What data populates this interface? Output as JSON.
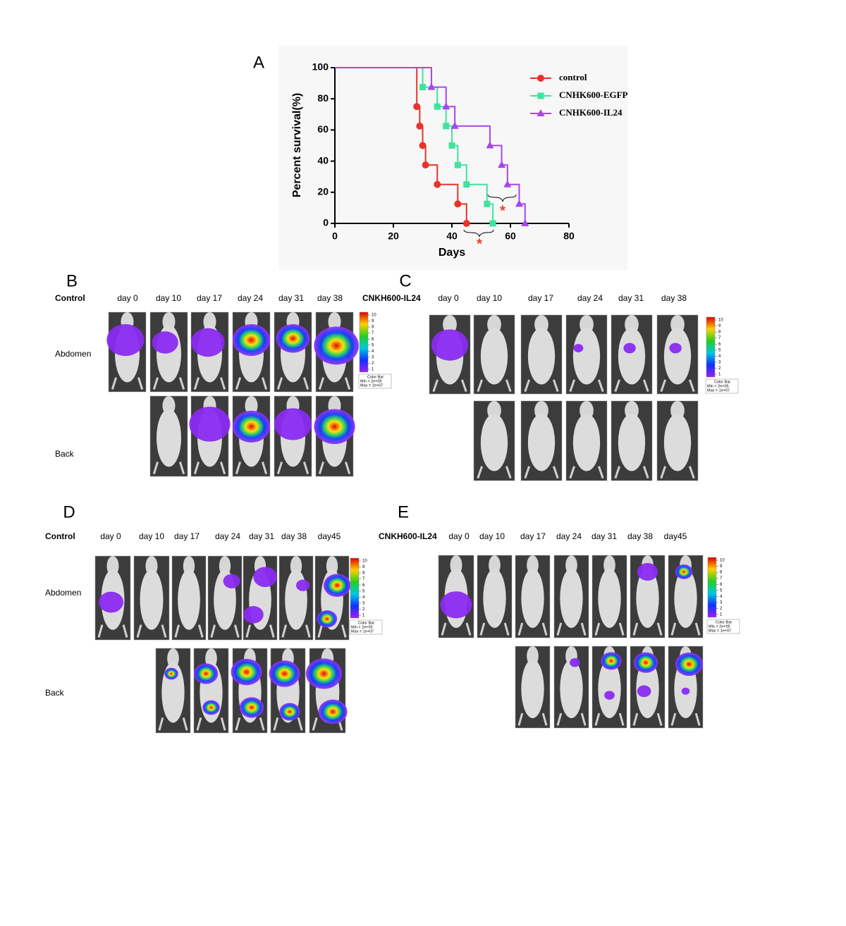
{
  "chart_data": {
    "type": "step",
    "panel_label": "A",
    "x_label": "Days",
    "y_label": "Percent survival(%)",
    "xlim": [
      0,
      80
    ],
    "xticks": [
      0,
      20,
      40,
      60,
      80
    ],
    "ylim": [
      0,
      100
    ],
    "yticks": [
      0,
      20,
      40,
      60,
      80,
      100
    ],
    "legend": "upper right",
    "series": [
      {
        "name": "control",
        "color": "#e8332a",
        "marker": "circle",
        "x": [
          0,
          28,
          29,
          30,
          31,
          35,
          42,
          45
        ],
        "values": [
          100,
          75,
          62.5,
          50,
          37.5,
          25,
          12.5,
          0
        ]
      },
      {
        "name": "CNHK600-EGFP",
        "color": "#3fe3a0",
        "marker": "square",
        "x": [
          0,
          30,
          35,
          38,
          40,
          42,
          45,
          52,
          54
        ],
        "values": [
          100,
          87.5,
          75,
          62.5,
          50,
          37.5,
          25,
          12.5,
          0
        ]
      },
      {
        "name": "CNHK600-IL24",
        "color": "#a845ef",
        "marker": "triangle",
        "x": [
          0,
          33,
          38,
          41,
          53,
          57,
          59,
          63,
          65
        ],
        "values": [
          100,
          87.5,
          75,
          62.5,
          50,
          37.5,
          25,
          12.5,
          0
        ]
      }
    ],
    "annotations": [
      "*",
      "*"
    ]
  },
  "panels": [
    {
      "label": "B",
      "group": "Control",
      "days": [
        "day 0",
        "day 10",
        "day 17",
        "day 24",
        "day 31",
        "day 38"
      ],
      "rows": [
        "Abdomen",
        "Back"
      ]
    },
    {
      "label": "C",
      "group": "CNKH600-IL24",
      "days": [
        "day 0",
        "day 10",
        "day 17",
        "day 24",
        "day 31",
        "day 38"
      ]
    },
    {
      "label": "D",
      "group": "Control",
      "days": [
        "day 0",
        "day 10",
        "day 17",
        "day 24",
        "day 31",
        "day 38",
        "day45"
      ],
      "rows": [
        "Abdomen",
        "Back"
      ]
    },
    {
      "label": "E",
      "group": "CNKH600-IL24",
      "days": [
        "day 0",
        "day 10",
        "day 17",
        "day 24",
        "day 31",
        "day 38",
        "day45"
      ]
    }
  ],
  "color_bar": {
    "ticks": [
      1,
      2,
      3,
      4,
      5,
      6,
      7,
      8,
      9,
      10
    ],
    "caption": [
      "Color Bar",
      "Min = 2e+05",
      "Max = 1e+07"
    ]
  }
}
